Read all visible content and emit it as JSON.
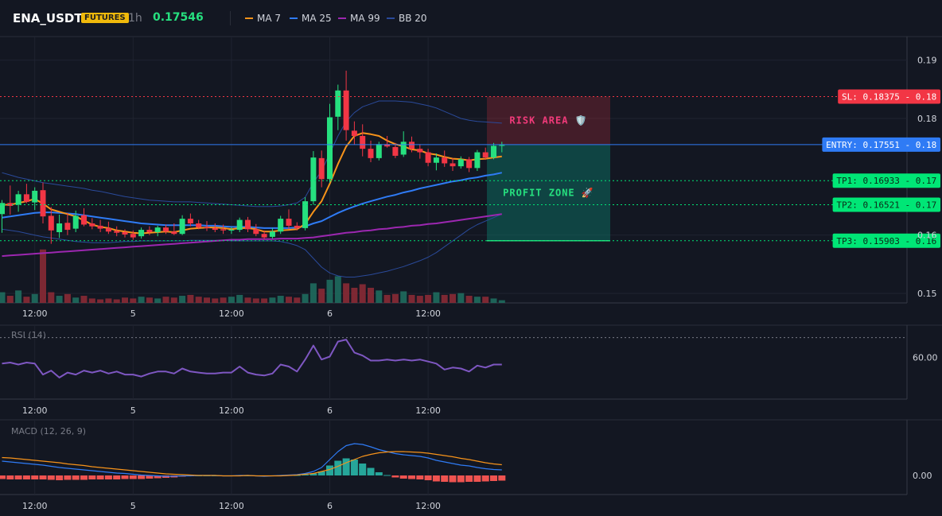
{
  "header": {
    "symbol": "ENA_USDT",
    "market_badge": "FUTURES",
    "timeframe": "1h",
    "last_price": "0.17546",
    "legend": [
      {
        "label": "MA 7",
        "color": "#f7931a"
      },
      {
        "label": "MA 25",
        "color": "#2f7bf5"
      },
      {
        "label": "MA 99",
        "color": "#9c27b0"
      },
      {
        "label": "BB 20",
        "color": "#2a4a9a"
      }
    ]
  },
  "levels": {
    "sl": {
      "label": "SL: 0.18375 - 0.18",
      "value": 0.18375,
      "color": "#f23645"
    },
    "entry": {
      "label": "ENTRY: 0.17551 - 0.18",
      "value": 0.17551,
      "color": "#2f7bf5"
    },
    "tp1": {
      "label": "TP1: 0.16933 - 0.17",
      "value": 0.16933,
      "color": "#00e676"
    },
    "tp2": {
      "label": "TP2: 0.16521 - 0.17",
      "value": 0.16521,
      "color": "#00e676"
    },
    "tp3": {
      "label": "TP3: 0.15903 - 0.16",
      "value": 0.15903,
      "color": "#00e676"
    }
  },
  "zones": {
    "risk_label": "RISK AREA 🛡️",
    "profit_label": "PROFIT ZONE 🚀"
  },
  "x_axis": {
    "ticks": [
      {
        "label": "12:00",
        "index": 4
      },
      {
        "label": "5",
        "index": 16
      },
      {
        "label": "12:00",
        "index": 28
      },
      {
        "label": "6",
        "index": 40
      },
      {
        "label": "12:00",
        "index": 52
      }
    ]
  },
  "price_axis": {
    "ticks": [
      "0.19",
      "0.18",
      "0.16",
      "0.15"
    ],
    "tick_values": [
      0.19,
      0.18,
      0.16,
      0.15
    ],
    "range": [
      0.1485,
      0.1935
    ]
  },
  "rsi_panel": {
    "title": "RSI (14)",
    "level_label": "60.00",
    "level": 60,
    "range": [
      20,
      90
    ]
  },
  "macd_panel": {
    "title": "MACD (12, 26, 9)",
    "zero_label": "0.00"
  },
  "chart_data": {
    "type": "candlestick",
    "title": "",
    "candles": [
      {
        "o": 0.1636,
        "h": 0.166,
        "l": 0.1604,
        "c": 0.1655
      },
      {
        "o": 0.1655,
        "h": 0.1685,
        "l": 0.1635,
        "c": 0.165
      },
      {
        "o": 0.1652,
        "h": 0.1676,
        "l": 0.164,
        "c": 0.167
      },
      {
        "o": 0.167,
        "h": 0.1688,
        "l": 0.1655,
        "c": 0.1657
      },
      {
        "o": 0.1656,
        "h": 0.1682,
        "l": 0.1643,
        "c": 0.1676
      },
      {
        "o": 0.1677,
        "h": 0.169,
        "l": 0.162,
        "c": 0.1632
      },
      {
        "o": 0.1633,
        "h": 0.1648,
        "l": 0.1585,
        "c": 0.1608
      },
      {
        "o": 0.1605,
        "h": 0.1635,
        "l": 0.1595,
        "c": 0.162
      },
      {
        "o": 0.1621,
        "h": 0.1638,
        "l": 0.16,
        "c": 0.1609
      },
      {
        "o": 0.1611,
        "h": 0.1642,
        "l": 0.1605,
        "c": 0.1633
      },
      {
        "o": 0.1634,
        "h": 0.1646,
        "l": 0.1615,
        "c": 0.1618
      },
      {
        "o": 0.162,
        "h": 0.1629,
        "l": 0.161,
        "c": 0.1615
      },
      {
        "o": 0.1616,
        "h": 0.1626,
        "l": 0.1605,
        "c": 0.1611
      },
      {
        "o": 0.1612,
        "h": 0.1623,
        "l": 0.1602,
        "c": 0.1606
      },
      {
        "o": 0.1607,
        "h": 0.1615,
        "l": 0.1598,
        "c": 0.1604
      },
      {
        "o": 0.1605,
        "h": 0.161,
        "l": 0.1596,
        "c": 0.1601
      },
      {
        "o": 0.1602,
        "h": 0.1608,
        "l": 0.1592,
        "c": 0.1596
      },
      {
        "o": 0.1598,
        "h": 0.1613,
        "l": 0.1594,
        "c": 0.1609
      },
      {
        "o": 0.1609,
        "h": 0.1615,
        "l": 0.16,
        "c": 0.1605
      },
      {
        "o": 0.1605,
        "h": 0.1616,
        "l": 0.1598,
        "c": 0.1613
      },
      {
        "o": 0.1613,
        "h": 0.1618,
        "l": 0.1602,
        "c": 0.1606
      },
      {
        "o": 0.1606,
        "h": 0.162,
        "l": 0.16,
        "c": 0.1602
      },
      {
        "o": 0.1602,
        "h": 0.1634,
        "l": 0.16,
        "c": 0.1628
      },
      {
        "o": 0.1628,
        "h": 0.1637,
        "l": 0.1615,
        "c": 0.162
      },
      {
        "o": 0.162,
        "h": 0.1626,
        "l": 0.161,
        "c": 0.1613
      },
      {
        "o": 0.1614,
        "h": 0.1624,
        "l": 0.1607,
        "c": 0.1612
      },
      {
        "o": 0.1612,
        "h": 0.162,
        "l": 0.1605,
        "c": 0.1609
      },
      {
        "o": 0.161,
        "h": 0.1618,
        "l": 0.1602,
        "c": 0.1608
      },
      {
        "o": 0.1608,
        "h": 0.1614,
        "l": 0.1602,
        "c": 0.1609
      },
      {
        "o": 0.1609,
        "h": 0.163,
        "l": 0.1605,
        "c": 0.1626
      },
      {
        "o": 0.1626,
        "h": 0.1631,
        "l": 0.1605,
        "c": 0.161
      },
      {
        "o": 0.161,
        "h": 0.1619,
        "l": 0.1598,
        "c": 0.1602
      },
      {
        "o": 0.1602,
        "h": 0.1608,
        "l": 0.1593,
        "c": 0.1596
      },
      {
        "o": 0.1597,
        "h": 0.1612,
        "l": 0.1594,
        "c": 0.1606
      },
      {
        "o": 0.1606,
        "h": 0.1633,
        "l": 0.1602,
        "c": 0.1628
      },
      {
        "o": 0.1628,
        "h": 0.1644,
        "l": 0.161,
        "c": 0.1616
      },
      {
        "o": 0.1616,
        "h": 0.1622,
        "l": 0.1608,
        "c": 0.1612
      },
      {
        "o": 0.1612,
        "h": 0.1665,
        "l": 0.1608,
        "c": 0.1658
      },
      {
        "o": 0.1658,
        "h": 0.1744,
        "l": 0.1652,
        "c": 0.1733
      },
      {
        "o": 0.1732,
        "h": 0.1745,
        "l": 0.1682,
        "c": 0.1696
      },
      {
        "o": 0.1696,
        "h": 0.1825,
        "l": 0.169,
        "c": 0.1802
      },
      {
        "o": 0.1803,
        "h": 0.1858,
        "l": 0.178,
        "c": 0.1848
      },
      {
        "o": 0.1848,
        "h": 0.1882,
        "l": 0.1762,
        "c": 0.178
      },
      {
        "o": 0.1779,
        "h": 0.1795,
        "l": 0.1755,
        "c": 0.177
      },
      {
        "o": 0.177,
        "h": 0.179,
        "l": 0.1735,
        "c": 0.1748
      },
      {
        "o": 0.1748,
        "h": 0.1762,
        "l": 0.1725,
        "c": 0.1732
      },
      {
        "o": 0.1732,
        "h": 0.176,
        "l": 0.1728,
        "c": 0.1756
      },
      {
        "o": 0.1756,
        "h": 0.177,
        "l": 0.175,
        "c": 0.1752
      },
      {
        "o": 0.1751,
        "h": 0.1758,
        "l": 0.1732,
        "c": 0.1736
      },
      {
        "o": 0.1738,
        "h": 0.1778,
        "l": 0.1734,
        "c": 0.176
      },
      {
        "o": 0.176,
        "h": 0.1769,
        "l": 0.1742,
        "c": 0.1748
      },
      {
        "o": 0.1748,
        "h": 0.1756,
        "l": 0.1731,
        "c": 0.1742
      },
      {
        "o": 0.1742,
        "h": 0.1748,
        "l": 0.1718,
        "c": 0.1724
      },
      {
        "o": 0.1724,
        "h": 0.174,
        "l": 0.1711,
        "c": 0.1733
      },
      {
        "o": 0.1733,
        "h": 0.1745,
        "l": 0.1717,
        "c": 0.1723
      },
      {
        "o": 0.1723,
        "h": 0.1732,
        "l": 0.171,
        "c": 0.1718
      },
      {
        "o": 0.1718,
        "h": 0.1735,
        "l": 0.1714,
        "c": 0.173
      },
      {
        "o": 0.173,
        "h": 0.1734,
        "l": 0.1708,
        "c": 0.1715
      },
      {
        "o": 0.1715,
        "h": 0.1746,
        "l": 0.171,
        "c": 0.1742
      },
      {
        "o": 0.1742,
        "h": 0.175,
        "l": 0.1729,
        "c": 0.1733
      },
      {
        "o": 0.1733,
        "h": 0.1758,
        "l": 0.173,
        "c": 0.1753
      },
      {
        "o": 0.1753,
        "h": 0.176,
        "l": 0.1742,
        "c": 0.17546
      }
    ],
    "volume": [
      12,
      8,
      14,
      7,
      10,
      60,
      12,
      8,
      10,
      6,
      8,
      5,
      4,
      5,
      4,
      6,
      5,
      7,
      6,
      5,
      7,
      6,
      8,
      9,
      7,
      6,
      5,
      6,
      7,
      9,
      6,
      5,
      5,
      6,
      8,
      7,
      6,
      10,
      22,
      16,
      26,
      30,
      22,
      17,
      21,
      17,
      14,
      9,
      10,
      13,
      9,
      8,
      9,
      12,
      9,
      10,
      11,
      8,
      7,
      7,
      5,
      3
    ],
    "ma7": [
      0.1652,
      0.1652,
      0.1655,
      0.1658,
      0.1662,
      0.1654,
      0.1644,
      0.164,
      0.1636,
      0.1632,
      0.1625,
      0.1618,
      0.1614,
      0.1612,
      0.1608,
      0.1606,
      0.1604,
      0.1603,
      0.1604,
      0.1605,
      0.1606,
      0.1605,
      0.1608,
      0.1611,
      0.1612,
      0.1613,
      0.1613,
      0.1612,
      0.161,
      0.1612,
      0.1612,
      0.161,
      0.1606,
      0.1606,
      0.1608,
      0.1609,
      0.161,
      0.1619,
      0.164,
      0.1658,
      0.1688,
      0.1722,
      0.1752,
      0.177,
      0.1775,
      0.1773,
      0.177,
      0.1762,
      0.1756,
      0.1752,
      0.1747,
      0.1745,
      0.174,
      0.1738,
      0.1734,
      0.1731,
      0.173,
      0.1728,
      0.173,
      0.1731,
      0.1733,
      0.1735
    ],
    "ma25": [
      0.163,
      0.1632,
      0.1634,
      0.1636,
      0.1638,
      0.1639,
      0.1639,
      0.1638,
      0.1637,
      0.1636,
      0.1634,
      0.1632,
      0.163,
      0.1628,
      0.1626,
      0.1624,
      0.1622,
      0.162,
      0.1619,
      0.1618,
      0.1617,
      0.1617,
      0.1617,
      0.1617,
      0.1617,
      0.1616,
      0.1616,
      0.1615,
      0.1614,
      0.1614,
      0.1614,
      0.1613,
      0.1612,
      0.1612,
      0.1612,
      0.1612,
      0.1613,
      0.1615,
      0.162,
      0.1624,
      0.1631,
      0.1638,
      0.1644,
      0.1649,
      0.1654,
      0.1658,
      0.1662,
      0.1666,
      0.1669,
      0.1673,
      0.1676,
      0.168,
      0.1683,
      0.1686,
      0.1689,
      0.1692,
      0.1694,
      0.1697,
      0.1699,
      0.1702,
      0.1704,
      0.1707
    ],
    "ma99": [
      0.1564,
      0.1565,
      0.1566,
      0.1567,
      0.1568,
      0.1569,
      0.157,
      0.1571,
      0.1572,
      0.1573,
      0.1574,
      0.1575,
      0.1576,
      0.1577,
      0.1578,
      0.1579,
      0.158,
      0.1581,
      0.1582,
      0.1583,
      0.1584,
      0.1585,
      0.1586,
      0.1587,
      0.1588,
      0.1589,
      0.159,
      0.1591,
      0.1592,
      0.1592,
      0.1593,
      0.1593,
      0.1593,
      0.1593,
      0.1594,
      0.1594,
      0.1594,
      0.1595,
      0.1596,
      0.1598,
      0.16,
      0.1602,
      0.1604,
      0.1605,
      0.1607,
      0.1608,
      0.161,
      0.1611,
      0.1613,
      0.1614,
      0.1616,
      0.1617,
      0.1619,
      0.162,
      0.1622,
      0.1624,
      0.1626,
      0.1628,
      0.163,
      0.1632,
      0.1634,
      0.1636
    ],
    "bb_upper": [
      0.1707,
      0.1703,
      0.1699,
      0.1696,
      0.1693,
      0.169,
      0.1688,
      0.1686,
      0.1684,
      0.1682,
      0.168,
      0.1677,
      0.1675,
      0.1672,
      0.1669,
      0.1666,
      0.1664,
      0.1662,
      0.166,
      0.1659,
      0.1658,
      0.1657,
      0.1657,
      0.1657,
      0.1656,
      0.1655,
      0.1654,
      0.1653,
      0.1652,
      0.1651,
      0.165,
      0.1649,
      0.1649,
      0.1649,
      0.165,
      0.1652,
      0.1655,
      0.1665,
      0.169,
      0.171,
      0.174,
      0.177,
      0.1795,
      0.181,
      0.182,
      0.1825,
      0.183,
      0.183,
      0.183,
      0.1829,
      0.1828,
      0.1825,
      0.1822,
      0.1818,
      0.1812,
      0.1806,
      0.18,
      0.1797,
      0.1795,
      0.1794,
      0.1793,
      0.1792
    ],
    "bb_lower": [
      0.161,
      0.1608,
      0.1606,
      0.1603,
      0.16,
      0.1597,
      0.1595,
      0.1593,
      0.1591,
      0.1589,
      0.1588,
      0.1587,
      0.1587,
      0.1587,
      0.1588,
      0.1589,
      0.1589,
      0.159,
      0.159,
      0.159,
      0.159,
      0.159,
      0.159,
      0.1591,
      0.1591,
      0.1591,
      0.1591,
      0.1591,
      0.159,
      0.159,
      0.159,
      0.159,
      0.159,
      0.159,
      0.1589,
      0.1586,
      0.1582,
      0.1575,
      0.156,
      0.1545,
      0.1535,
      0.153,
      0.1528,
      0.1528,
      0.153,
      0.1532,
      0.1535,
      0.1538,
      0.1542,
      0.1546,
      0.1551,
      0.1556,
      0.1562,
      0.157,
      0.158,
      0.159,
      0.16,
      0.161,
      0.1618,
      0.1624,
      0.163,
      0.1636
    ],
    "rsi": [
      54,
      55,
      53,
      55,
      54,
      43,
      47,
      40,
      45,
      43,
      47,
      45,
      47,
      44,
      46,
      43,
      43,
      41,
      44,
      46,
      46,
      44,
      49,
      46,
      45,
      44,
      44,
      45,
      45,
      51,
      45,
      43,
      42,
      44,
      53,
      51,
      46,
      58,
      72,
      58,
      61,
      76,
      78,
      65,
      62,
      57,
      57,
      58,
      57,
      58,
      57,
      58,
      56,
      54,
      48,
      50,
      49,
      46,
      52,
      50,
      53,
      53
    ],
    "macd": [
      36,
      34,
      32,
      30,
      28,
      26,
      23,
      20,
      18,
      16,
      14,
      12,
      10,
      8,
      6,
      5,
      3,
      1,
      0,
      -1,
      -2,
      -2,
      -1,
      -1,
      0,
      0,
      0,
      -1,
      -1,
      0,
      0,
      -1,
      -2,
      -1,
      0,
      1,
      2,
      5,
      10,
      20,
      40,
      60,
      75,
      80,
      78,
      72,
      65,
      60,
      55,
      52,
      50,
      48,
      44,
      38,
      34,
      30,
      26,
      24,
      20,
      17,
      15,
      14
    ],
    "macd_signal": [
      45,
      44,
      42,
      40,
      38,
      36,
      34,
      32,
      29,
      27,
      25,
      22,
      20,
      18,
      16,
      14,
      12,
      10,
      8,
      6,
      4,
      3,
      2,
      1,
      0,
      0,
      0,
      -1,
      -1,
      -1,
      0,
      -1,
      -1,
      -1,
      -1,
      0,
      1,
      3,
      5,
      10,
      15,
      23,
      32,
      40,
      48,
      53,
      57,
      59,
      60,
      60,
      59,
      58,
      56,
      53,
      50,
      47,
      43,
      40,
      36,
      32,
      29,
      27
    ],
    "macd_hist": [
      -9,
      -10,
      -10,
      -10,
      -10,
      -10,
      -11,
      -12,
      -11,
      -11,
      -11,
      -10,
      -10,
      -10,
      -10,
      -9,
      -9,
      -9,
      -8,
      -7,
      -6,
      -5,
      -3,
      -2,
      0,
      0,
      0,
      0,
      0,
      1,
      0,
      0,
      -1,
      0,
      1,
      1,
      1,
      2,
      5,
      10,
      25,
      37,
      43,
      40,
      30,
      19,
      8,
      1,
      -5,
      -8,
      -9,
      -10,
      -12,
      -15,
      -16,
      -17,
      -17,
      -16,
      -16,
      -15,
      -14,
      -13
    ]
  }
}
